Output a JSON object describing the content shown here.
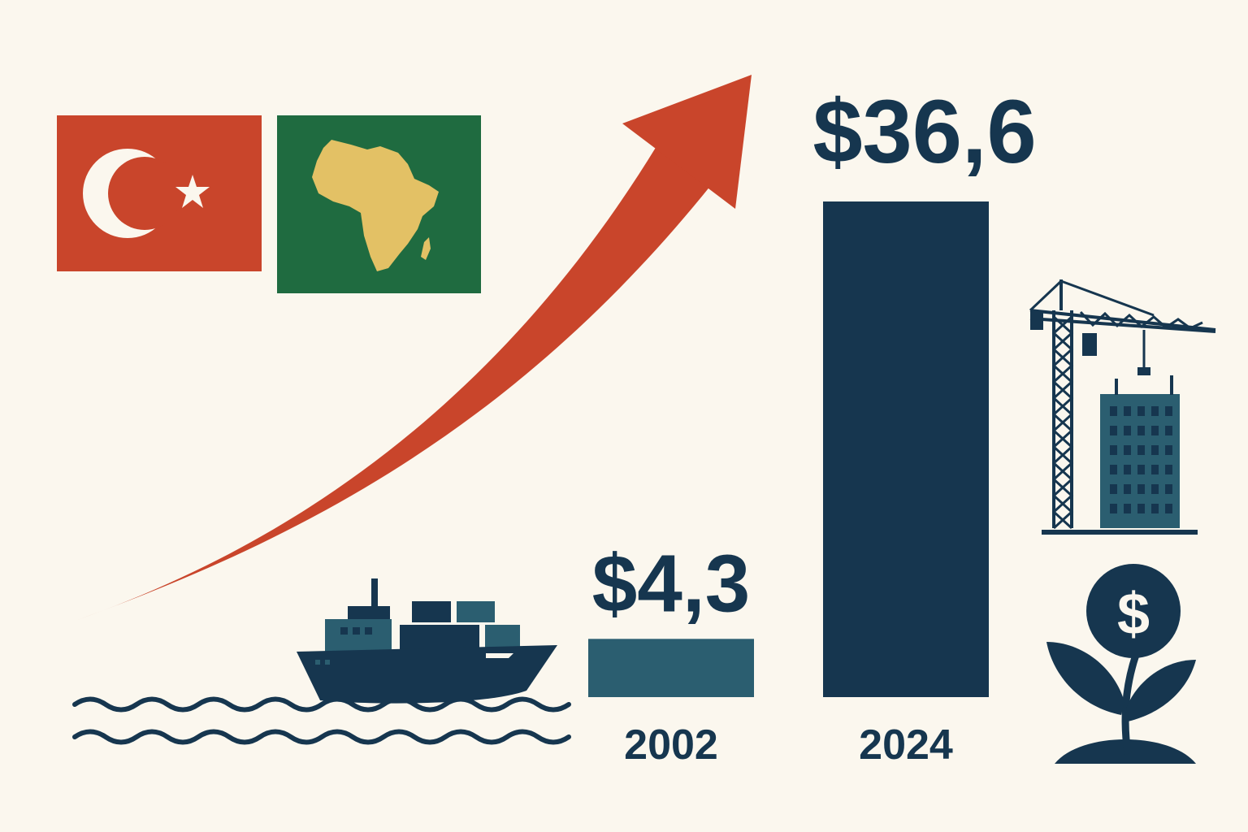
{
  "colors": {
    "background": "#fbf7ee",
    "navy": "#16364f",
    "teal": "#2b5e70",
    "red": "#c9452b",
    "green": "#1f6b40",
    "gold": "#e3c165",
    "white": "#fbf7ee"
  },
  "chart_data": {
    "type": "bar",
    "categories": [
      "2002",
      "2024"
    ],
    "values": [
      4.3,
      36.6
    ],
    "value_labels": [
      "$4,3",
      "$36,6"
    ],
    "bar_colors": [
      "#2b5e70",
      "#16364f"
    ],
    "title": "",
    "xlabel": "",
    "ylabel": "",
    "ylim": [
      0,
      36.6
    ],
    "grid": false,
    "trend_arrow": "rising"
  },
  "icons": [
    "turkey-flag-icon",
    "africa-flag-icon",
    "trend-arrow-icon",
    "cargo-ship-icon",
    "waves-icon",
    "construction-crane-icon",
    "building-icon",
    "money-plant-icon",
    "dollar-coin-icon"
  ]
}
